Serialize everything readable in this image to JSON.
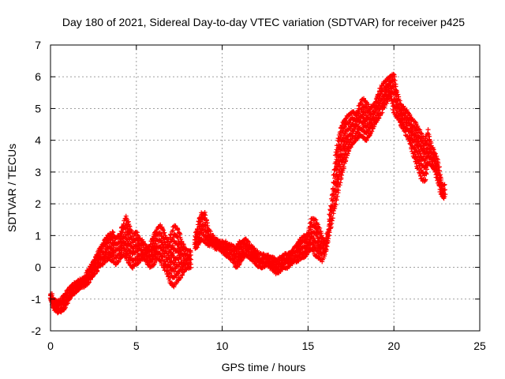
{
  "chart_data": {
    "type": "scatter",
    "title": "Day 180 of 2021, Sidereal Day-to-day VTEC variation (SDTVAR) for receiver p425",
    "xlabel": "GPS time / hours",
    "ylabel": "SDTVAR / TECUs",
    "xlim": [
      0,
      25
    ],
    "ylim": [
      -2,
      7
    ],
    "x_ticks": [
      0,
      5,
      10,
      15,
      20,
      25
    ],
    "y_ticks": [
      -2,
      -1,
      0,
      1,
      2,
      3,
      4,
      5,
      6,
      7
    ],
    "grid": true,
    "marker": "+",
    "marker_color": "#ff0000",
    "series": [
      {
        "name": "p425",
        "x": [
          0.0,
          0.2,
          0.4,
          0.6,
          0.8,
          1.0,
          1.2,
          1.4,
          1.6,
          1.8,
          2.0,
          2.2,
          2.4,
          2.6,
          2.8,
          3.0,
          3.2,
          3.4,
          3.6,
          3.8,
          4.0,
          4.2,
          4.4,
          4.6,
          4.8,
          5.0,
          5.2,
          5.4,
          5.6,
          5.8,
          6.0,
          6.2,
          6.4,
          6.6,
          6.8,
          7.0,
          7.2,
          7.4,
          7.6,
          7.8,
          8.0,
          8.4,
          8.6,
          8.8,
          9.0,
          9.2,
          9.4,
          9.6,
          9.8,
          10.0,
          10.2,
          10.4,
          10.6,
          10.8,
          11.0,
          11.2,
          11.4,
          11.6,
          11.8,
          12.0,
          12.2,
          12.4,
          12.6,
          12.8,
          13.0,
          13.2,
          13.4,
          13.6,
          13.8,
          14.0,
          14.2,
          14.4,
          14.6,
          14.8,
          15.0,
          15.2,
          15.4,
          15.6,
          15.8,
          16.0,
          16.2,
          16.4,
          16.6,
          16.8,
          17.0,
          17.2,
          17.4,
          17.6,
          17.8,
          18.0,
          18.2,
          18.4,
          18.6,
          18.8,
          19.0,
          19.2,
          19.4,
          19.6,
          19.8,
          20.0,
          20.2,
          20.4,
          20.6,
          20.8,
          21.0,
          21.2,
          21.4,
          21.6,
          21.8,
          22.0,
          22.2,
          22.4,
          22.6,
          22.8
        ],
        "y_low": [
          -1.0,
          -1.3,
          -1.4,
          -1.4,
          -1.3,
          -1.1,
          -0.9,
          -0.8,
          -0.7,
          -0.6,
          -0.6,
          -0.5,
          -0.3,
          -0.2,
          0.0,
          0.1,
          0.2,
          0.3,
          0.2,
          0.1,
          0.2,
          0.4,
          0.3,
          0.1,
          0.0,
          0.1,
          0.2,
          0.3,
          0.2,
          0.0,
          0.1,
          0.3,
          0.2,
          0.0,
          -0.2,
          -0.5,
          -0.6,
          -0.4,
          -0.3,
          -0.1,
          0.0,
          0.6,
          0.7,
          0.9,
          0.8,
          0.7,
          0.7,
          0.6,
          0.6,
          0.5,
          0.4,
          0.3,
          0.2,
          0.0,
          0.1,
          0.3,
          0.4,
          0.3,
          0.2,
          0.1,
          0.0,
          0.0,
          0.1,
          0.0,
          -0.1,
          -0.2,
          -0.1,
          0.0,
          0.0,
          0.1,
          0.2,
          0.2,
          0.3,
          0.3,
          0.5,
          0.6,
          0.4,
          0.3,
          0.2,
          0.4,
          0.9,
          1.5,
          2.0,
          2.5,
          3.0,
          3.4,
          3.7,
          3.9,
          4.0,
          4.2,
          4.1,
          4.0,
          4.2,
          4.4,
          4.6,
          4.8,
          5.0,
          5.2,
          5.4,
          4.9,
          4.7,
          4.5,
          4.3,
          4.1,
          3.8,
          3.4,
          3.1,
          2.8,
          2.7,
          3.3,
          3.2,
          3.0,
          2.6,
          2.2
        ],
        "y_high": [
          -0.8,
          -1.0,
          -1.1,
          -1.0,
          -0.9,
          -0.7,
          -0.6,
          -0.5,
          -0.4,
          -0.4,
          -0.3,
          -0.1,
          0.1,
          0.3,
          0.5,
          0.7,
          0.9,
          1.0,
          1.1,
          0.9,
          1.0,
          1.3,
          1.6,
          1.3,
          1.0,
          1.1,
          0.9,
          0.8,
          0.6,
          0.7,
          1.0,
          1.2,
          1.3,
          1.1,
          0.8,
          1.0,
          1.3,
          1.2,
          0.9,
          0.6,
          0.5,
          0.9,
          1.4,
          1.7,
          1.7,
          1.2,
          1.0,
          0.9,
          0.8,
          0.8,
          0.8,
          0.7,
          0.7,
          0.6,
          0.8,
          0.8,
          0.9,
          0.7,
          0.6,
          0.5,
          0.4,
          0.4,
          0.4,
          0.3,
          0.3,
          0.2,
          0.3,
          0.4,
          0.4,
          0.5,
          0.6,
          0.8,
          0.9,
          1.0,
          1.1,
          1.5,
          1.5,
          1.3,
          1.0,
          0.8,
          1.3,
          2.3,
          3.5,
          4.2,
          4.5,
          4.7,
          4.8,
          4.9,
          4.8,
          5.1,
          5.3,
          5.2,
          5.0,
          5.1,
          5.3,
          5.6,
          5.8,
          5.9,
          6.0,
          6.1,
          5.5,
          5.1,
          5.0,
          4.9,
          4.7,
          4.6,
          4.4,
          4.2,
          4.0,
          4.3,
          3.8,
          3.6,
          3.3,
          2.6
        ]
      }
    ]
  }
}
